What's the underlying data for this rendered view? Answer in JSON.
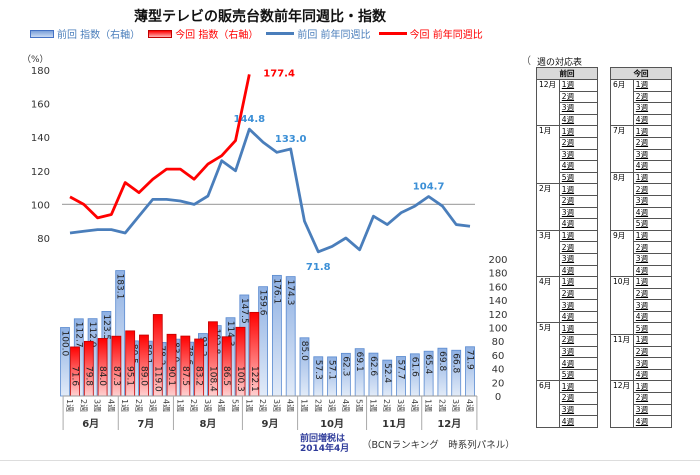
{
  "title": "薄型テレビの販売台数前年同週比・指数",
  "legend": [
    {
      "label": "前回 指数（右軸）",
      "color": "#4472c4",
      "kind": "bar-blue"
    },
    {
      "label": "今回 指数（右軸）",
      "color": "#ff0000",
      "kind": "bar-red"
    },
    {
      "label": "前回 前年同週比",
      "color": "#4a7ebb",
      "kind": "line-blue"
    },
    {
      "label": "今回 前年同週比",
      "color": "#ff0000",
      "kind": "line-red"
    }
  ],
  "note": {
    "line1": "前回増税は",
    "line2": "2014年4月"
  },
  "source": "（BCNランキング　時系列パネル）",
  "chart_data": [
    {
      "type": "line",
      "title": "前年同週比",
      "ylabel": "（%）",
      "ylim": [
        70,
        180
      ],
      "yticks": [
        80,
        100,
        120,
        140,
        160,
        180
      ],
      "reference_line": 100,
      "series": [
        {
          "name": "前回 前年同週比",
          "color": "#4a7ebb",
          "values": [
            83,
            84,
            85,
            85,
            83,
            93,
            103,
            103,
            102,
            100,
            105,
            126,
            120,
            144.8,
            137,
            131,
            133.0,
            90,
            71.8,
            75,
            80,
            73,
            93,
            88,
            95,
            99,
            104.7,
            99,
            88,
            87
          ],
          "labels": {
            "13": "144.8",
            "16": "133.0",
            "18": "71.8",
            "26": "104.7"
          }
        },
        {
          "name": "今回 前年同週比",
          "color": "#ff0000",
          "values": [
            104.5,
            100,
            92,
            94,
            113,
            107,
            115,
            121,
            121,
            115,
            124,
            129,
            138,
            177.4
          ],
          "labels": {
            "13": "177.4"
          }
        }
      ]
    },
    {
      "type": "bar",
      "title": "指数（右軸）",
      "ylim": [
        0,
        200
      ],
      "yticks": [
        0,
        20,
        40,
        60,
        80,
        100,
        120,
        140,
        160,
        180,
        200
      ],
      "months": [
        {
          "label": "6月",
          "weeks": [
            "1週",
            "2週",
            "3週",
            "4週"
          ]
        },
        {
          "label": "7月",
          "weeks": [
            "1週",
            "2週",
            "3週",
            "4週"
          ]
        },
        {
          "label": "8月",
          "weeks": [
            "1週",
            "2週",
            "3週",
            "4週",
            "5週"
          ]
        },
        {
          "label": "9月",
          "weeks": [
            "1週",
            "2週",
            "3週",
            "4週"
          ]
        },
        {
          "label": "10月",
          "weeks": [
            "1週",
            "2週",
            "3週",
            "4週",
            "5週"
          ]
        },
        {
          "label": "11月",
          "weeks": [
            "1週",
            "2週",
            "3週",
            "4週"
          ]
        },
        {
          "label": "12月",
          "weeks": [
            "1週",
            "2週",
            "3週",
            "4週"
          ]
        }
      ],
      "series": [
        {
          "name": "前回 指数（右軸）",
          "color": "#a9c4eb",
          "values": [
            100.0,
            112.7,
            112.9,
            123.5,
            183.1,
            80.5,
            80.1,
            78.2,
            83.0,
            78.6,
            91.2,
            102.8,
            114.3,
            147.5,
            159.6,
            176.1,
            174.3,
            85.0,
            57.3,
            57.1,
            62.3,
            69.1,
            62.6,
            52.4,
            57.7,
            61.6,
            65.4,
            69.8,
            66.8,
            71.9
          ]
        },
        {
          "name": "今回 指数（右軸）",
          "color": "#ff0000",
          "values": [
            71.6,
            79.8,
            84.0,
            87.3,
            95.1,
            89.0,
            119.0,
            90.1,
            87.5,
            83.2,
            108.4,
            86.5,
            100.3,
            122.1
          ]
        }
      ]
    }
  ],
  "week_table": {
    "title": "週の対応表",
    "paren": "（",
    "prev": {
      "header": "前回",
      "groups": [
        {
          "month": "12月",
          "weeks": [
            "1週",
            "2週",
            "3週",
            "4週"
          ]
        },
        {
          "month": "1月",
          "weeks": [
            "1週",
            "2週",
            "3週",
            "4週",
            "5週"
          ]
        },
        {
          "month": "2月",
          "weeks": [
            "1週",
            "2週",
            "3週",
            "4週"
          ]
        },
        {
          "month": "3月",
          "weeks": [
            "1週",
            "2週",
            "3週",
            "4週"
          ]
        },
        {
          "month": "4月",
          "weeks": [
            "1週",
            "2週",
            "3週",
            "4週"
          ]
        },
        {
          "month": "5月",
          "weeks": [
            "1週",
            "2週",
            "3週",
            "4週",
            "5週"
          ]
        },
        {
          "month": "6月",
          "weeks": [
            "1週",
            "2週",
            "3週",
            "4週"
          ]
        }
      ]
    },
    "curr": {
      "header": "今回",
      "groups": [
        {
          "month": "6月",
          "weeks": [
            "1週",
            "2週",
            "3週",
            "4週"
          ]
        },
        {
          "month": "7月",
          "weeks": [
            "1週",
            "2週",
            "3週",
            "4週"
          ]
        },
        {
          "month": "8月",
          "weeks": [
            "1週",
            "2週",
            "3週",
            "4週",
            "5週"
          ]
        },
        {
          "month": "9月",
          "weeks": [
            "1週",
            "2週",
            "3週",
            "4週"
          ]
        },
        {
          "month": "10月",
          "weeks": [
            "1週",
            "2週",
            "3週",
            "4週",
            "5週"
          ]
        },
        {
          "month": "11月",
          "weeks": [
            "1週",
            "2週",
            "3週",
            "4週"
          ]
        },
        {
          "month": "12月",
          "weeks": [
            "1週",
            "2週",
            "3週",
            "4週"
          ]
        }
      ]
    }
  }
}
